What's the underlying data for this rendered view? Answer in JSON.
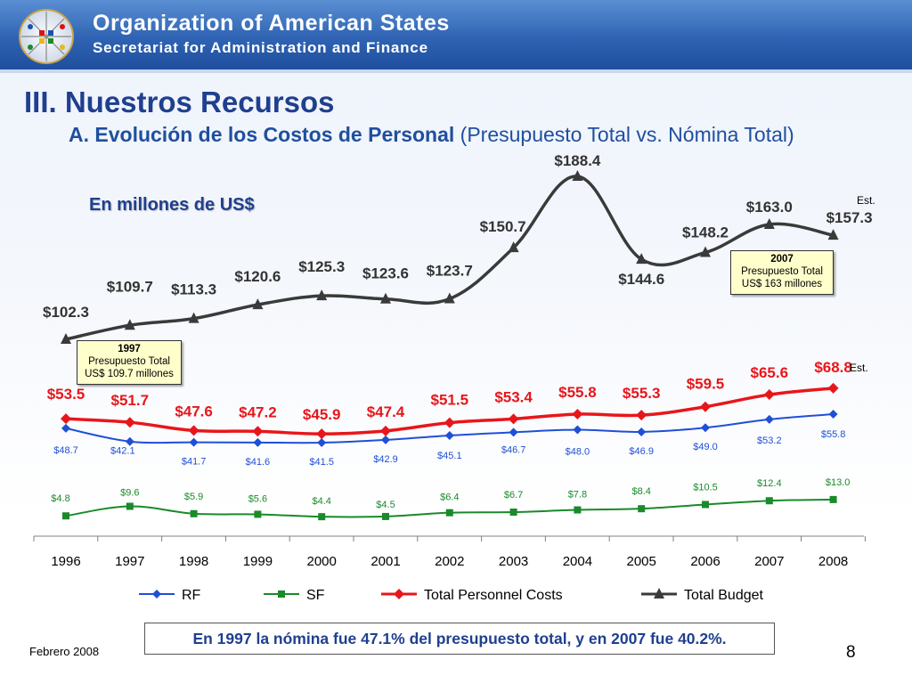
{
  "header": {
    "org_name": "Organization of American States",
    "org_sub": "Secretariat for Administration and Finance"
  },
  "title": "III. Nuestros Recursos",
  "subtitle": {
    "bold": "A. Evolución de los Costos de Personal",
    "normal": "(Presupuesto Total vs. Nómina Total)"
  },
  "units_label": "En millones de US$",
  "callouts": {
    "c1997": {
      "year": "1997",
      "line1": "Presupuesto Total",
      "line2": "US$ 109.7 millones"
    },
    "c2007": {
      "year": "2007",
      "line1": "Presupuesto Total",
      "line2": "US$ 163 millones"
    }
  },
  "est_labels": [
    "Est.",
    "Est."
  ],
  "footnote": "En 1997 la nómina fue 47.1% del presupuesto total, y en 2007 fue 40.2%.",
  "date": "Febrero 2008",
  "page_number": "8",
  "colors": {
    "rf": "#1f4fd6",
    "sf": "#1a8a2a",
    "personnel": "#e8161b",
    "budget": "#3a3a3a"
  },
  "chart_data": {
    "type": "line",
    "x": [
      "1996",
      "1997",
      "1998",
      "1999",
      "2000",
      "2001",
      "2002",
      "2003",
      "2004",
      "2005",
      "2006",
      "2007",
      "2008"
    ],
    "series": [
      {
        "name": "RF",
        "values": [
          48.7,
          42.1,
          41.7,
          41.6,
          41.5,
          42.9,
          45.1,
          46.7,
          48.0,
          46.9,
          49.0,
          53.2,
          55.8
        ],
        "labels": [
          "$48.7",
          "$42.1",
          "$41.7",
          "$41.6",
          "$41.5",
          "$42.9",
          "$45.1",
          "$46.7",
          "$48.0",
          "$46.9",
          "$49.0",
          "$53.2",
          "$55.8"
        ]
      },
      {
        "name": "SF",
        "values": [
          4.8,
          9.6,
          5.9,
          5.6,
          4.4,
          4.5,
          6.4,
          6.7,
          7.8,
          8.4,
          10.5,
          12.4,
          13.0
        ],
        "labels": [
          "$4.8",
          "$9.6",
          "$5.9",
          "$5.6",
          "$4.4",
          "$4.5",
          "$6.4",
          "$6.7",
          "$7.8",
          "$8.4",
          "$10.5",
          "$12.4",
          "$13.0"
        ]
      },
      {
        "name": "Total Personnel Costs",
        "values": [
          53.5,
          51.7,
          47.6,
          47.2,
          45.9,
          47.4,
          51.5,
          53.4,
          55.8,
          55.3,
          59.5,
          65.6,
          68.8
        ],
        "labels": [
          "$53.5",
          "$51.7",
          "$47.6",
          "$47.2",
          "$45.9",
          "$47.4",
          "$51.5",
          "$53.4",
          "$55.8",
          "$55.3",
          "$59.5",
          "$65.6",
          "$68.8"
        ]
      },
      {
        "name": "Total Budget",
        "values": [
          102.3,
          109.7,
          113.3,
          120.6,
          125.3,
          123.6,
          123.7,
          150.7,
          188.4,
          144.6,
          148.2,
          163.0,
          157.3
        ],
        "labels": [
          "$102.3",
          "$109.7",
          "$113.3",
          "$120.6",
          "$125.3",
          "$123.6",
          "$123.7",
          "$150.7",
          "$188.4",
          "$144.6",
          "$148.2",
          "$163.0",
          "$157.3"
        ]
      }
    ],
    "legend": [
      "RF",
      "SF",
      "Total Personnel Costs",
      "Total Budget"
    ],
    "legend_position": "bottom",
    "grid": false
  }
}
